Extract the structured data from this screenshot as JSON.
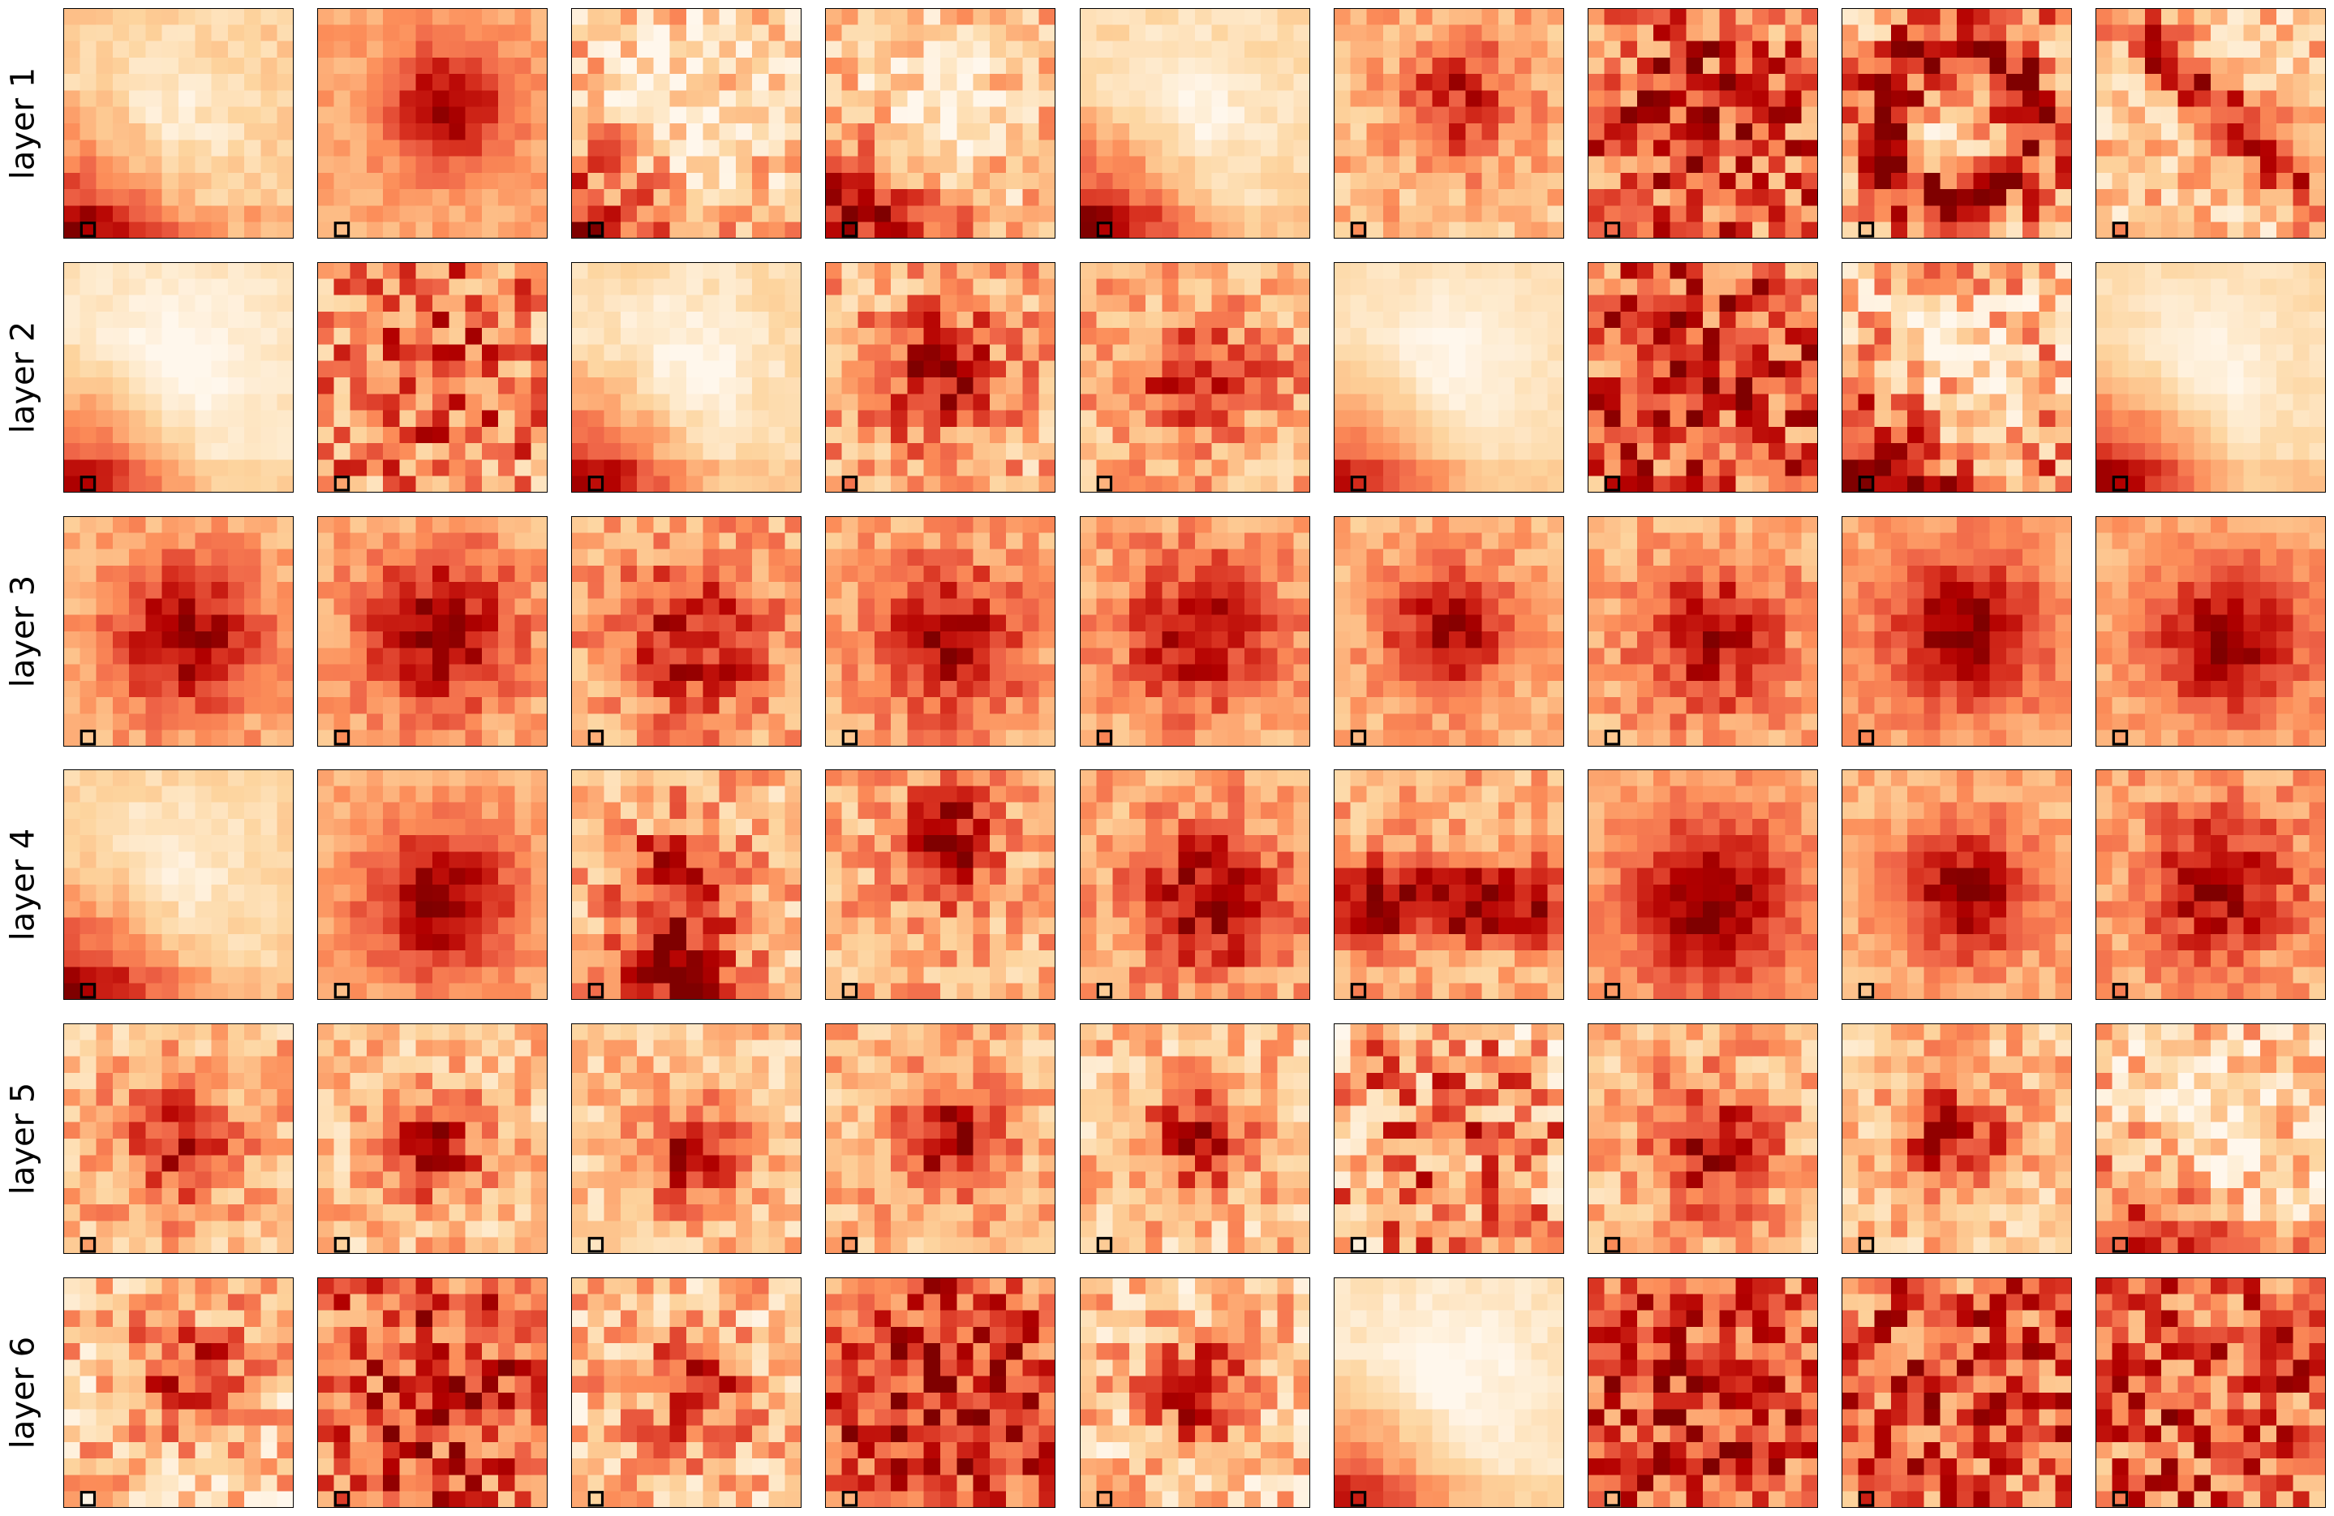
{
  "chart_data": {
    "type": "heatmap",
    "grid": {
      "rows": 6,
      "cols": 9,
      "cells_per_side": 14
    },
    "colormap": "OrRd",
    "colormap_stops": [
      "#fff7ec",
      "#fee8c8",
      "#fdd49e",
      "#fdbb84",
      "#fc8d59",
      "#ef6548",
      "#d7301f",
      "#b30000",
      "#7f0000"
    ],
    "marker": {
      "cell": [
        1,
        13
      ],
      "description": "black outlined square at the bottom-left cell of every panel"
    },
    "row_labels": [
      "layer 1",
      "layer 2",
      "layer 3",
      "layer 4",
      "layer 5",
      "layer 6"
    ],
    "rows": [
      {
        "label": "layer 1",
        "panels": [
          {
            "pattern": "hot-bottom-left",
            "base": 0.28,
            "amp": 0.55,
            "noise": 0.1
          },
          {
            "pattern": "center-blob",
            "base": 0.42,
            "amp": 0.5,
            "noise": 0.08,
            "cx": 7.5,
            "cy": 5.5,
            "r": 4.0
          },
          {
            "pattern": "hot-bottom-left",
            "base": 0.3,
            "amp": 0.45,
            "noise": 0.28
          },
          {
            "pattern": "hot-bottom-left",
            "base": 0.32,
            "amp": 0.55,
            "noise": 0.25
          },
          {
            "pattern": "hot-bottom-left",
            "base": 0.22,
            "amp": 0.65,
            "noise": 0.08
          },
          {
            "pattern": "center-blob",
            "base": 0.35,
            "amp": 0.45,
            "noise": 0.18,
            "cx": 7.0,
            "cy": 5.0,
            "r": 4.0
          },
          {
            "pattern": "noise",
            "base": 0.6,
            "amp": 0.25,
            "noise": 0.35
          },
          {
            "pattern": "ring",
            "base": 0.45,
            "amp": 0.45,
            "noise": 0.35
          },
          {
            "pattern": "diagonal",
            "base": 0.3,
            "amp": 0.5,
            "noise": 0.25
          }
        ]
      },
      {
        "label": "layer 2",
        "panels": [
          {
            "pattern": "hot-bottom-left",
            "base": 0.15,
            "amp": 0.65,
            "noise": 0.05
          },
          {
            "pattern": "noise",
            "base": 0.5,
            "amp": 0.2,
            "noise": 0.35
          },
          {
            "pattern": "hot-bottom-left",
            "base": 0.2,
            "amp": 0.65,
            "noise": 0.08
          },
          {
            "pattern": "center-blob",
            "base": 0.38,
            "amp": 0.5,
            "noise": 0.28,
            "cx": 6.5,
            "cy": 6.5,
            "r": 4.0
          },
          {
            "pattern": "cross",
            "base": 0.38,
            "amp": 0.45,
            "noise": 0.22,
            "cx": 7.0,
            "cy": 6.5
          },
          {
            "pattern": "hot-bottom-left",
            "base": 0.18,
            "amp": 0.55,
            "noise": 0.04
          },
          {
            "pattern": "noise",
            "base": 0.62,
            "amp": 0.2,
            "noise": 0.35
          },
          {
            "pattern": "hot-bottom-left",
            "base": 0.38,
            "amp": 0.5,
            "noise": 0.35
          },
          {
            "pattern": "hot-bottom-left",
            "base": 0.2,
            "amp": 0.65,
            "noise": 0.05
          }
        ]
      },
      {
        "label": "layer 3",
        "panels": [
          {
            "pattern": "center-blob",
            "base": 0.38,
            "amp": 0.55,
            "noise": 0.12,
            "cx": 7.0,
            "cy": 7.0,
            "r": 5.0
          },
          {
            "pattern": "center-blob",
            "base": 0.4,
            "amp": 0.55,
            "noise": 0.14,
            "cx": 7.0,
            "cy": 6.5,
            "r": 5.0
          },
          {
            "pattern": "center-blob",
            "base": 0.4,
            "amp": 0.45,
            "noise": 0.2,
            "cx": 7.0,
            "cy": 7.0,
            "r": 5.0
          },
          {
            "pattern": "center-blob",
            "base": 0.4,
            "amp": 0.5,
            "noise": 0.16,
            "cx": 7.0,
            "cy": 7.0,
            "r": 5.0
          },
          {
            "pattern": "center-blob",
            "base": 0.4,
            "amp": 0.5,
            "noise": 0.16,
            "cx": 7.0,
            "cy": 6.5,
            "r": 5.0
          },
          {
            "pattern": "center-blob",
            "base": 0.36,
            "amp": 0.55,
            "noise": 0.12,
            "cx": 6.5,
            "cy": 6.5,
            "r": 4.5
          },
          {
            "pattern": "center-blob",
            "base": 0.38,
            "amp": 0.5,
            "noise": 0.16,
            "cx": 7.0,
            "cy": 7.0,
            "r": 5.0
          },
          {
            "pattern": "center-blob",
            "base": 0.42,
            "amp": 0.55,
            "noise": 0.1,
            "cx": 7.0,
            "cy": 6.5,
            "r": 5.0
          },
          {
            "pattern": "center-blob",
            "base": 0.4,
            "amp": 0.55,
            "noise": 0.1,
            "cx": 7.5,
            "cy": 7.0,
            "r": 5.0
          }
        ]
      },
      {
        "label": "layer 4",
        "panels": [
          {
            "pattern": "hot-bottom-left",
            "base": 0.25,
            "amp": 0.6,
            "noise": 0.08
          },
          {
            "pattern": "center-blob",
            "base": 0.4,
            "amp": 0.55,
            "noise": 0.1,
            "cx": 7.0,
            "cy": 7.5,
            "r": 5.0
          },
          {
            "pattern": "bottom-band",
            "base": 0.35,
            "amp": 0.6,
            "noise": 0.25
          },
          {
            "pattern": "top-blob",
            "base": 0.38,
            "amp": 0.55,
            "noise": 0.22,
            "cx": 7.0,
            "cy": 4.0,
            "r": 5.0
          },
          {
            "pattern": "center-blob",
            "base": 0.38,
            "amp": 0.55,
            "noise": 0.18,
            "cx": 7.5,
            "cy": 7.5,
            "r": 5.0
          },
          {
            "pattern": "horizontal-band",
            "base": 0.4,
            "amp": 0.55,
            "noise": 0.2,
            "cy": 7.5
          },
          {
            "pattern": "center-blob",
            "base": 0.4,
            "amp": 0.6,
            "noise": 0.1,
            "cx": 7.0,
            "cy": 7.5,
            "r": 5.5
          },
          {
            "pattern": "center-blob",
            "base": 0.38,
            "amp": 0.55,
            "noise": 0.12,
            "cx": 7.0,
            "cy": 7.0,
            "r": 4.5
          },
          {
            "pattern": "center-blob",
            "base": 0.4,
            "amp": 0.5,
            "noise": 0.16,
            "cx": 7.0,
            "cy": 6.5,
            "r": 5.0
          }
        ]
      },
      {
        "label": "layer 5",
        "panels": [
          {
            "pattern": "center-blob",
            "base": 0.35,
            "amp": 0.5,
            "noise": 0.22,
            "cx": 6.5,
            "cy": 7.0,
            "r": 3.5
          },
          {
            "pattern": "center-blob",
            "base": 0.3,
            "amp": 0.55,
            "noise": 0.22,
            "cx": 6.5,
            "cy": 7.0,
            "r": 3.5
          },
          {
            "pattern": "center-blob",
            "base": 0.3,
            "amp": 0.55,
            "noise": 0.2,
            "cx": 7.0,
            "cy": 7.5,
            "r": 3.5
          },
          {
            "pattern": "center-blob",
            "base": 0.35,
            "amp": 0.55,
            "noise": 0.2,
            "cx": 7.0,
            "cy": 6.5,
            "r": 3.5
          },
          {
            "pattern": "center-blob",
            "base": 0.3,
            "amp": 0.55,
            "noise": 0.24,
            "cx": 7.0,
            "cy": 6.5,
            "r": 3.5
          },
          {
            "pattern": "noise",
            "base": 0.4,
            "amp": 0.3,
            "noise": 0.4
          },
          {
            "pattern": "center-blob",
            "base": 0.35,
            "amp": 0.55,
            "noise": 0.22,
            "cx": 7.0,
            "cy": 7.0,
            "r": 4.0
          },
          {
            "pattern": "center-blob",
            "base": 0.32,
            "amp": 0.55,
            "noise": 0.22,
            "cx": 6.5,
            "cy": 6.5,
            "r": 3.5
          },
          {
            "pattern": "hot-bottom-left",
            "base": 0.3,
            "amp": 0.4,
            "noise": 0.3
          }
        ]
      },
      {
        "label": "layer 6",
        "panels": [
          {
            "pattern": "center-blob",
            "base": 0.3,
            "amp": 0.45,
            "noise": 0.3,
            "cx": 7.0,
            "cy": 5.0,
            "r": 3.5
          },
          {
            "pattern": "noise",
            "base": 0.62,
            "amp": 0.2,
            "noise": 0.32
          },
          {
            "pattern": "center-blob",
            "base": 0.3,
            "amp": 0.45,
            "noise": 0.3,
            "cx": 7.0,
            "cy": 6.5,
            "r": 3.5
          },
          {
            "pattern": "noise",
            "base": 0.68,
            "amp": 0.2,
            "noise": 0.3
          },
          {
            "pattern": "center-blob",
            "base": 0.28,
            "amp": 0.55,
            "noise": 0.28,
            "cx": 6.5,
            "cy": 6.5,
            "r": 3.5
          },
          {
            "pattern": "hot-bottom-left",
            "base": 0.15,
            "amp": 0.6,
            "noise": 0.06
          },
          {
            "pattern": "noise",
            "base": 0.64,
            "amp": 0.2,
            "noise": 0.32
          },
          {
            "pattern": "noise",
            "base": 0.6,
            "amp": 0.2,
            "noise": 0.34
          },
          {
            "pattern": "noise",
            "base": 0.58,
            "amp": 0.2,
            "noise": 0.34
          }
        ]
      }
    ]
  }
}
